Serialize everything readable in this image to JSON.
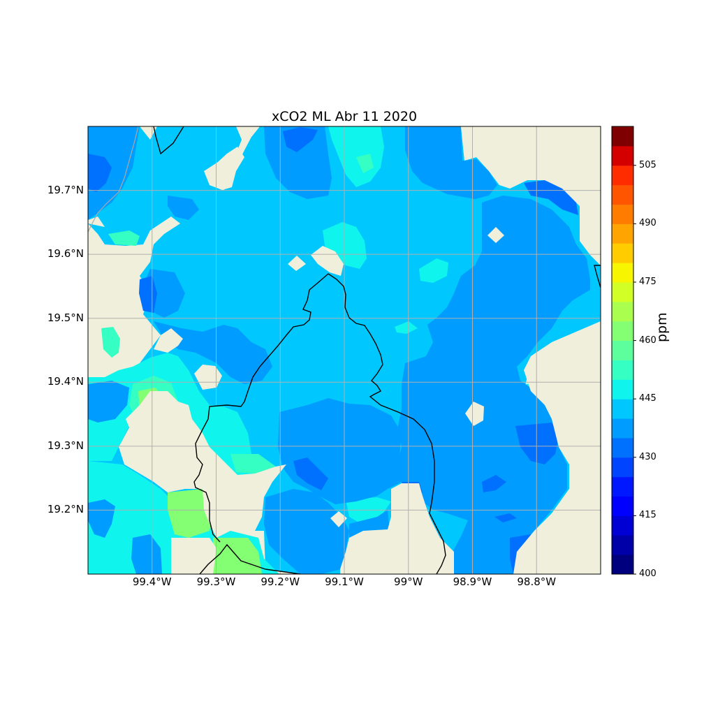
{
  "title": "xCO2 ML Abr 11 2020",
  "colorbar": {
    "label": "ppm",
    "min": 400,
    "max": 515,
    "step": 5,
    "tick_labels": [
      "400",
      "415",
      "430",
      "445",
      "460",
      "475",
      "490",
      "505"
    ],
    "tick_values": [
      400,
      415,
      430,
      445,
      460,
      475,
      490,
      505
    ],
    "colors": [
      "#00007f",
      "#0000a8",
      "#0000d4",
      "#0000ff",
      "#0018ff",
      "#0044ff",
      "#0070ff",
      "#009cff",
      "#00c8ff",
      "#0ff4ec",
      "#36ffc4",
      "#5cff9c",
      "#84ff74",
      "#aaff4e",
      "#d2ff26",
      "#f8f500",
      "#ffcc00",
      "#ffa400",
      "#ff7c00",
      "#ff5400",
      "#ff2c00",
      "#d40000",
      "#7f0000"
    ]
  },
  "map": {
    "lon_range": [
      -99.5,
      -98.7
    ],
    "lat_range": [
      19.1,
      19.8
    ],
    "land_color": "#efefdb",
    "x_tick_labels": [
      "99.4°W",
      "99.3°W",
      "99.2°W",
      "99.1°W",
      "99°W",
      "98.9°W",
      "98.8°W"
    ],
    "x_tick_values": [
      -99.4,
      -99.3,
      -99.2,
      -99.1,
      -99.0,
      -98.9,
      -98.8
    ],
    "y_tick_labels": [
      "19.2°N",
      "19.3°N",
      "19.4°N",
      "19.5°N",
      "19.6°N",
      "19.7°N"
    ],
    "y_tick_values": [
      19.2,
      19.3,
      19.4,
      19.5,
      19.6,
      19.7
    ]
  }
}
